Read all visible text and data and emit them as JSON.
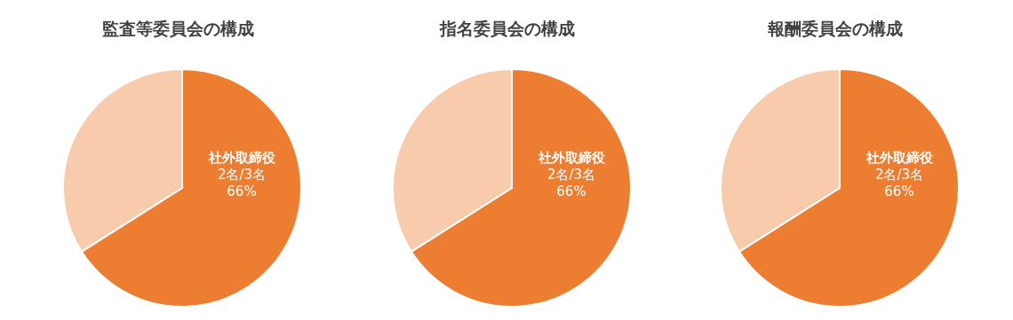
{
  "chart_data": [
    {
      "type": "pie",
      "title": "監査等委員会の構成",
      "categories": [
        "社外取締役",
        null
      ],
      "values": [
        66,
        34
      ],
      "colors": [
        "#ed7d31",
        "#f8cbad"
      ],
      "value_labels": [
        "2名/3名\n66%",
        null
      ]
    },
    {
      "type": "pie",
      "title": "指名委員会の構成",
      "categories": [
        "社外取締役",
        null
      ],
      "values": [
        66,
        34
      ],
      "colors": [
        "#ed7d31",
        "#f8cbad"
      ],
      "value_labels": [
        "2名/3名\n66%",
        null
      ]
    },
    {
      "type": "pie",
      "title": "報酬委員会の構成",
      "categories": [
        "社外取締役",
        null
      ],
      "values": [
        66,
        34
      ],
      "colors": [
        "#ed7d31",
        "#f8cbad"
      ],
      "value_labels": [
        "2名/3名\n66%",
        null
      ]
    }
  ]
}
